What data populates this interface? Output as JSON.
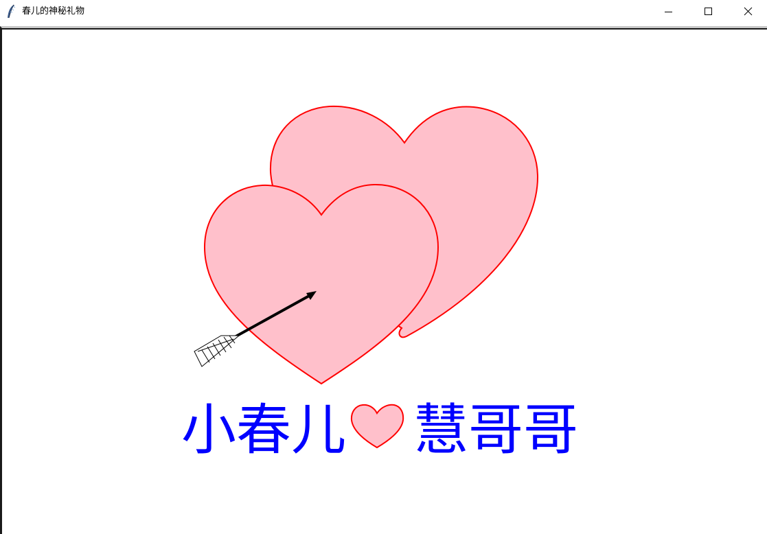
{
  "window": {
    "title": "春儿的神秘礼物"
  },
  "canvas": {
    "message_part1": "小春儿",
    "message_part2": "慧哥哥",
    "heart_fill": "#ffc0cb",
    "heart_stroke": "#ff0000",
    "text_color": "#0000ff",
    "arrow_color": "#000000"
  },
  "icons": {
    "app": "feather-icon",
    "minimize": "minimize-icon",
    "maximize": "maximize-icon",
    "close": "close-icon"
  }
}
